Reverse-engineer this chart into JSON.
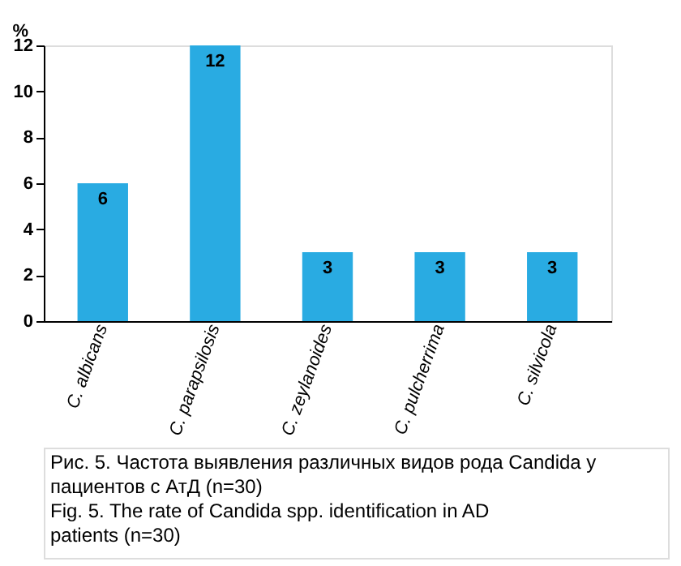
{
  "chart_data": {
    "type": "bar",
    "ylabel": "%",
    "categories": [
      "C. albicans",
      "C. parapsilosis",
      "C. zeylanoides",
      "C. pulcherrima",
      "C. silvicola"
    ],
    "values": [
      6,
      12,
      3,
      3,
      3
    ],
    "color": "#29abe2",
    "ylim": [
      0,
      12
    ],
    "yticks": [
      0,
      2,
      4,
      6,
      8,
      10,
      12
    ],
    "data_labels": true,
    "grid": false,
    "annotations": [
      "Рис. 5. Частота выявления различных видов рода Candida у пациентов с АтД (n=30)",
      "Fig. 5. The rate of Candida spp. identification in AD patients (n=30)"
    ]
  }
}
